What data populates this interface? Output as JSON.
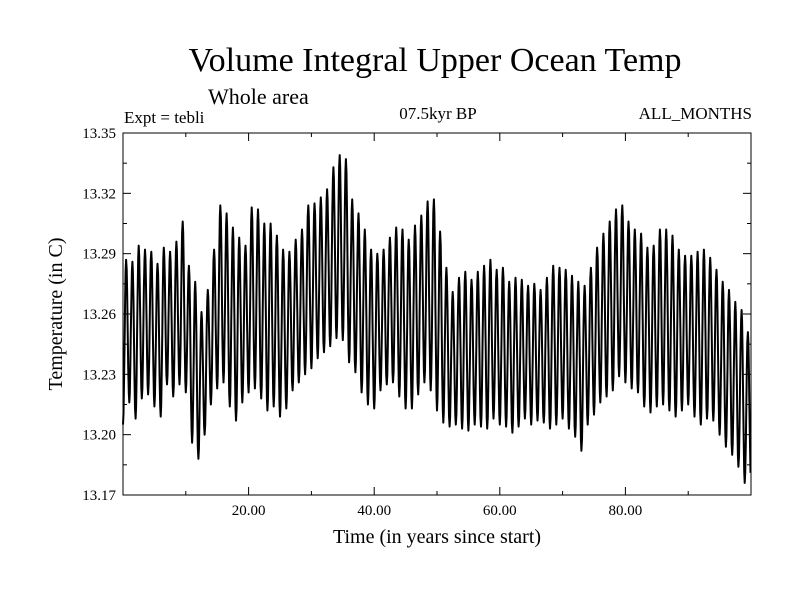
{
  "header": {
    "title": "Volume Integral Upper Ocean Temp",
    "subtitle": "Whole area",
    "experiment": "Expt = tebli",
    "period": "07.5kyr BP",
    "months": "ALL_MONTHS"
  },
  "chart_data": {
    "type": "line",
    "title": "Volume Integral Upper Ocean Temp",
    "xlabel": "Time (in years since start)",
    "ylabel": "Temperature (in C)",
    "xlim": [
      0,
      100
    ],
    "ylim": [
      13.17,
      13.35
    ],
    "x_ticks": [
      20,
      40,
      60,
      80
    ],
    "x_tick_labels": [
      "20.00",
      "40.00",
      "60.00",
      "80.00"
    ],
    "y_ticks": [
      13.17,
      13.2,
      13.23,
      13.26,
      13.29,
      13.32,
      13.35
    ],
    "y_tick_labels": [
      "13.17",
      "13.20",
      "13.23",
      "13.26",
      "13.29",
      "13.32",
      "13.35"
    ],
    "grid": false,
    "series": [
      {
        "name": "Temperature",
        "annual_peaks": [
          13.287,
          13.286,
          13.294,
          13.292,
          13.291,
          13.285,
          13.293,
          13.291,
          13.296,
          13.306,
          13.284,
          13.276,
          13.261,
          13.272,
          13.292,
          13.314,
          13.31,
          13.303,
          13.298,
          13.294,
          13.313,
          13.312,
          13.305,
          13.305,
          13.299,
          13.292,
          13.291,
          13.297,
          13.302,
          13.314,
          13.315,
          13.318,
          13.322,
          13.333,
          13.339,
          13.337,
          13.317,
          13.31,
          13.302,
          13.292,
          13.29,
          13.292,
          13.298,
          13.303,
          13.302,
          13.297,
          13.304,
          13.309,
          13.316,
          13.317,
          13.301,
          13.283,
          13.271,
          13.278,
          13.281,
          13.277,
          13.281,
          13.284,
          13.287,
          13.282,
          13.283,
          13.276,
          13.278,
          13.277,
          13.274,
          13.275,
          13.272,
          13.278,
          13.284,
          13.283,
          13.282,
          13.279,
          13.276,
          13.274,
          13.283,
          13.293,
          13.3,
          13.306,
          13.312,
          13.314,
          13.306,
          13.302,
          13.3,
          13.293,
          13.294,
          13.302,
          13.302,
          13.299,
          13.292,
          13.289,
          13.289,
          13.291,
          13.292,
          13.288,
          13.282,
          13.276,
          13.272,
          13.266,
          13.262,
          13.251
        ],
        "annual_troughs": [
          13.205,
          13.216,
          13.208,
          13.218,
          13.22,
          13.214,
          13.209,
          13.225,
          13.219,
          13.225,
          13.221,
          13.196,
          13.188,
          13.2,
          13.215,
          13.223,
          13.226,
          13.214,
          13.207,
          13.216,
          13.221,
          13.223,
          13.218,
          13.212,
          13.214,
          13.209,
          13.213,
          13.222,
          13.226,
          13.23,
          13.233,
          13.238,
          13.241,
          13.244,
          13.248,
          13.247,
          13.236,
          13.231,
          13.221,
          13.215,
          13.213,
          13.222,
          13.225,
          13.226,
          13.219,
          13.213,
          13.213,
          13.22,
          13.226,
          13.222,
          13.212,
          13.206,
          13.204,
          13.205,
          13.203,
          13.202,
          13.205,
          13.204,
          13.203,
          13.208,
          13.205,
          13.204,
          13.201,
          13.204,
          13.208,
          13.205,
          13.207,
          13.206,
          13.203,
          13.205,
          13.208,
          13.203,
          13.199,
          13.192,
          13.205,
          13.21,
          13.216,
          13.219,
          13.222,
          13.229,
          13.226,
          13.223,
          13.221,
          13.214,
          13.211,
          13.214,
          13.215,
          13.212,
          13.209,
          13.212,
          13.215,
          13.209,
          13.205,
          13.208,
          13.207,
          13.2,
          13.194,
          13.19,
          13.184,
          13.176
        ]
      }
    ]
  }
}
